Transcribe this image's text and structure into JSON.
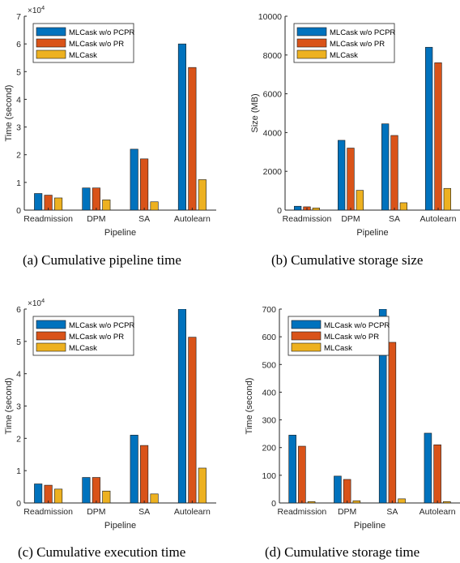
{
  "colors": {
    "series": [
      "#0072bd",
      "#d95319",
      "#edb120"
    ]
  },
  "chart_data": [
    {
      "type": "bar",
      "caption": "(a)  Cumulative pipeline time",
      "xlabel": "Pipeline",
      "ylabel": "Time (second)",
      "multiplier": "×10",
      "multiplier_exp": "4",
      "categories": [
        "Readmission",
        "DPM",
        "SA",
        "Autolearn"
      ],
      "ylim": [
        0,
        70000
      ],
      "yticks": [
        0,
        10000,
        20000,
        30000,
        40000,
        50000,
        60000,
        70000
      ],
      "ytick_labels": [
        "0",
        "1",
        "2",
        "3",
        "4",
        "5",
        "6",
        "7"
      ],
      "legend_position": "top-left",
      "series": [
        {
          "name": "MLCask w/o PCPR",
          "values": [
            6000,
            8000,
            22000,
            60000
          ]
        },
        {
          "name": "MLCask w/o PR",
          "values": [
            5400,
            8000,
            18500,
            51500
          ]
        },
        {
          "name": "MLCask",
          "values": [
            4400,
            3700,
            3000,
            11000
          ]
        }
      ]
    },
    {
      "type": "bar",
      "caption": "(b)  Cumulative storage size",
      "xlabel": "Pipeline",
      "ylabel": "Size (MB)",
      "multiplier": "",
      "multiplier_exp": "",
      "categories": [
        "Readmission",
        "DPM",
        "SA",
        "Autolearn"
      ],
      "ylim": [
        0,
        10000
      ],
      "yticks": [
        0,
        2000,
        4000,
        6000,
        8000,
        10000
      ],
      "ytick_labels": [
        "0",
        "2000",
        "4000",
        "6000",
        "8000",
        "10000"
      ],
      "legend_position": "top-left",
      "series": [
        {
          "name": "MLCask w/o PCPR",
          "values": [
            200,
            3600,
            4450,
            8400
          ]
        },
        {
          "name": "MLCask w/o PR",
          "values": [
            170,
            3200,
            3850,
            7600
          ]
        },
        {
          "name": "MLCask",
          "values": [
            110,
            1020,
            380,
            1120
          ]
        }
      ]
    },
    {
      "type": "bar",
      "caption": "(c)  Cumulative execution time",
      "xlabel": "Pipeline",
      "ylabel": "Time (second)",
      "multiplier": "×10",
      "multiplier_exp": "4",
      "categories": [
        "Readmission",
        "DPM",
        "SA",
        "Autolearn"
      ],
      "ylim": [
        0,
        60000
      ],
      "yticks": [
        0,
        10000,
        20000,
        30000,
        40000,
        50000,
        60000
      ],
      "ytick_labels": [
        "0",
        "1",
        "2",
        "3",
        "4",
        "5",
        "6"
      ],
      "legend_position": "top-left",
      "series": [
        {
          "name": "MLCask w/o PCPR",
          "values": [
            5900,
            7900,
            21000,
            60500
          ]
        },
        {
          "name": "MLCask w/o PR",
          "values": [
            5500,
            7900,
            17800,
            51300
          ]
        },
        {
          "name": "MLCask",
          "values": [
            4300,
            3700,
            2800,
            10800
          ]
        }
      ]
    },
    {
      "type": "bar",
      "caption": "(d)  Cumulative storage time",
      "xlabel": "Pipeline",
      "ylabel": "Time (second)",
      "multiplier": "",
      "multiplier_exp": "",
      "categories": [
        "Readmission",
        "DPM",
        "SA",
        "Autolearn"
      ],
      "ylim": [
        0,
        700
      ],
      "yticks": [
        0,
        100,
        200,
        300,
        400,
        500,
        600,
        700
      ],
      "ytick_labels": [
        "0",
        "100",
        "200",
        "300",
        "400",
        "500",
        "600",
        "700"
      ],
      "legend_position": "top-left",
      "series": [
        {
          "name": "MLCask w/o PCPR",
          "values": [
            245,
            97,
            700,
            252
          ]
        },
        {
          "name": "MLCask w/o PR",
          "values": [
            205,
            85,
            580,
            210
          ]
        },
        {
          "name": "MLCask",
          "values": [
            5,
            8,
            15,
            5
          ]
        }
      ]
    }
  ]
}
